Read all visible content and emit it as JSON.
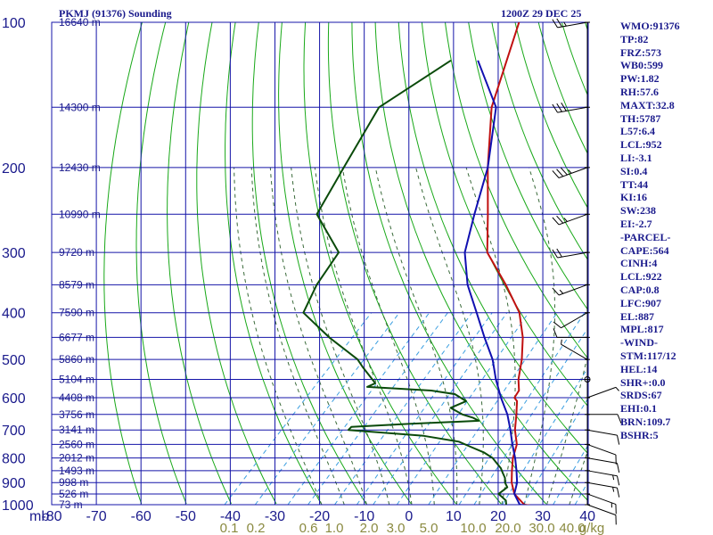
{
  "header": {
    "station": "PKMJ (91376) Sounding",
    "time": "1200Z 29 DEC 25"
  },
  "indices": [
    "WMO:91376",
    "TP:82",
    "FRZ:573",
    "WB0:599",
    "PW:1.82",
    "RH:57.6",
    "MAXT:32.8",
    "TH:5787",
    "L57:6.4",
    "LCL:952",
    "LI:-3.1",
    "SI:0.4",
    "TT:44",
    "KI:16",
    "SW:238",
    "EI:-2.7",
    "-PARCEL-",
    "CAPE:564",
    "CINH:4",
    "LCL:922",
    "CAP:0.8",
    "LFC:907",
    "EL:887",
    "MPL:817",
    "-WIND-",
    "STM:117/12",
    "HEL:14",
    "SHR+:0.0",
    "SRDS:67",
    "EHI:0.1",
    "BRN:109.7",
    "BSHR:5"
  ],
  "colors": {
    "grid": "#1414a8",
    "dry_adiabat": "#18a818",
    "moist_adiabat": "#3a6a3a",
    "mixing_ratio": "#3a9ee0",
    "temperature": "#c01010",
    "dewpoint": "#0a4a0a",
    "parcel": "#1010b0",
    "axis_text": "#1a1a8c",
    "mixing_text": "#8a8a40",
    "wind": "#000000"
  },
  "chart_data": {
    "type": "line",
    "xlabel": "",
    "ylabel": "mb",
    "pressure_levels": [
      100,
      200,
      300,
      400,
      500,
      600,
      700,
      800,
      900,
      1000
    ],
    "temperature_ticks": [
      "-80",
      "-70",
      "-60",
      "-50",
      "-40",
      "-30",
      "-20",
      "-10",
      "0",
      "10",
      "20",
      "30",
      "40"
    ],
    "mixing_ratio_labels": [
      "0.1",
      "0.2",
      "0.6",
      "1.0",
      "2.0",
      "3.0",
      "5.0",
      "10.0",
      "20.0",
      "30.0",
      "40.0",
      "g/kg"
    ],
    "height_labels": [
      {
        "p": 100,
        "h": "16640 m"
      },
      {
        "p": 150,
        "h": "14300 m"
      },
      {
        "p": 200,
        "h": "12430 m"
      },
      {
        "p": 250,
        "h": "10990 m"
      },
      {
        "p": 300,
        "h": "9720 m"
      },
      {
        "p": 350,
        "h": "8579 m"
      },
      {
        "p": 400,
        "h": "7590 m"
      },
      {
        "p": 450,
        "h": "6677 m"
      },
      {
        "p": 500,
        "h": "5860 m"
      },
      {
        "p": 550,
        "h": "5104 m"
      },
      {
        "p": 600,
        "h": "4408 m"
      },
      {
        "p": 650,
        "h": "3756 m"
      },
      {
        "p": 700,
        "h": "3141 m"
      },
      {
        "p": 750,
        "h": "2560 m"
      },
      {
        "p": 800,
        "h": "2012 m"
      },
      {
        "p": 850,
        "h": "1493 m"
      },
      {
        "p": 900,
        "h": "998 m"
      },
      {
        "p": 950,
        "h": "526 m"
      },
      {
        "p": 1000,
        "h": "73 m"
      }
    ],
    "series": [
      {
        "role": "temperature",
        "points": [
          [
            1008,
            28
          ],
          [
            1000,
            25
          ],
          [
            950,
            20.5
          ],
          [
            900,
            17.5
          ],
          [
            850,
            15
          ],
          [
            800,
            12.5
          ],
          [
            750,
            10.5
          ],
          [
            700,
            7
          ],
          [
            650,
            4
          ],
          [
            610,
            1.3
          ],
          [
            600,
            0
          ],
          [
            580,
            -0.5
          ],
          [
            550,
            -3
          ],
          [
            500,
            -6.5
          ],
          [
            450,
            -11
          ],
          [
            400,
            -17
          ],
          [
            350,
            -26
          ],
          [
            300,
            -37
          ],
          [
            250,
            -45
          ],
          [
            200,
            -55
          ],
          [
            150,
            -67
          ],
          [
            100,
            -79
          ]
        ]
      },
      {
        "role": "dewpoint",
        "points": [
          [
            1000,
            21
          ],
          [
            980,
            20
          ],
          [
            950,
            17
          ],
          [
            920,
            17.5
          ],
          [
            900,
            16
          ],
          [
            880,
            15
          ],
          [
            860,
            13.5
          ],
          [
            840,
            12
          ],
          [
            820,
            10
          ],
          [
            800,
            8
          ],
          [
            780,
            5
          ],
          [
            760,
            1
          ],
          [
            740,
            -3
          ],
          [
            720,
            -12
          ],
          [
            700,
            -30
          ],
          [
            690,
            -30
          ],
          [
            680,
            -18
          ],
          [
            670,
            -3
          ],
          [
            660,
            -5
          ],
          [
            650,
            -8
          ],
          [
            630,
            -12
          ],
          [
            610,
            -10
          ],
          [
            590,
            -14
          ],
          [
            580,
            -20
          ],
          [
            570,
            -35
          ],
          [
            560,
            -34
          ],
          [
            520,
            -40
          ],
          [
            500,
            -43
          ],
          [
            450,
            -54
          ],
          [
            400,
            -65
          ],
          [
            350,
            -68
          ],
          [
            300,
            -70
          ],
          [
            250,
            -83
          ],
          [
            200,
            -87
          ],
          [
            150,
            -92
          ],
          [
            120,
            -86
          ]
        ]
      },
      {
        "role": "parcel",
        "points": [
          [
            1008,
            28
          ],
          [
            1000,
            24
          ],
          [
            950,
            20.5
          ],
          [
            900,
            18.7
          ],
          [
            850,
            16
          ],
          [
            800,
            13
          ],
          [
            750,
            9.5
          ],
          [
            700,
            6
          ],
          [
            650,
            2
          ],
          [
            600,
            -3
          ],
          [
            550,
            -8
          ],
          [
            500,
            -13
          ],
          [
            450,
            -19.5
          ],
          [
            400,
            -26.5
          ],
          [
            350,
            -34.5
          ],
          [
            300,
            -42
          ],
          [
            250,
            -48
          ],
          [
            200,
            -55
          ],
          [
            150,
            -66
          ],
          [
            120,
            -80
          ]
        ]
      }
    ],
    "wind_barbs": [
      {
        "p": 1000,
        "dir": 110,
        "spd": 10
      },
      {
        "p": 950,
        "dir": 110,
        "spd": 15
      },
      {
        "p": 900,
        "dir": 100,
        "spd": 15
      },
      {
        "p": 850,
        "dir": 100,
        "spd": 15
      },
      {
        "p": 800,
        "dir": 100,
        "spd": 10
      },
      {
        "p": 750,
        "dir": 110,
        "spd": 10
      },
      {
        "p": 700,
        "dir": 100,
        "spd": 10
      },
      {
        "p": 650,
        "dir": 90,
        "spd": 10
      },
      {
        "p": 600,
        "dir": 70,
        "spd": 5
      },
      {
        "p": 550,
        "dir": 0,
        "spd": 0
      },
      {
        "p": 500,
        "dir": 300,
        "spd": 5
      },
      {
        "p": 450,
        "dir": 270,
        "spd": 10
      },
      {
        "p": 400,
        "dir": 240,
        "spd": 10
      },
      {
        "p": 350,
        "dir": 250,
        "spd": 15
      },
      {
        "p": 300,
        "dir": 260,
        "spd": 20
      },
      {
        "p": 250,
        "dir": 250,
        "spd": 25
      },
      {
        "p": 200,
        "dir": 250,
        "spd": 35
      },
      {
        "p": 150,
        "dir": 260,
        "spd": 30
      },
      {
        "p": 100,
        "dir": 260,
        "spd": 25
      }
    ]
  }
}
